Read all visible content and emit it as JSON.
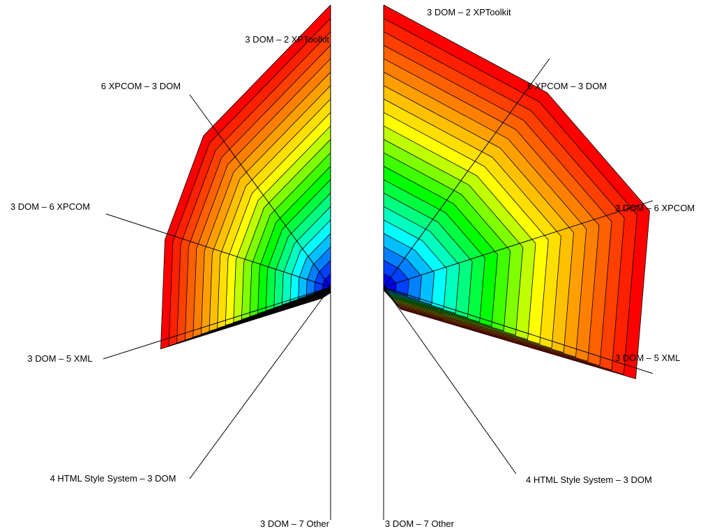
{
  "chart_data": [
    {
      "type": "radar",
      "panel": "left",
      "axes": [
        {
          "label": "3 DOM – 2 XPToolkit",
          "max": 1.0,
          "angle_deg": 90
        },
        {
          "label": "6 XPCOM – 3 DOM",
          "max": 0.7,
          "angle_deg": 130
        },
        {
          "label": "3 DOM – 6 XPCOM",
          "max": 0.61,
          "angle_deg": 164
        },
        {
          "label": "3 DOM – 5 XML",
          "max": 0.64,
          "angle_deg": 200
        },
        {
          "label": "4 HTML Style System – 3 DOM",
          "max": 0.05,
          "angle_deg": 232
        },
        {
          "label": "3 DOM – 7 Other",
          "max": 0.02,
          "angle_deg": 270
        }
      ],
      "bands": 21,
      "color_scale": [
        "#0000ff",
        "#00ffff",
        "#00ff00",
        "#ffff00",
        "#ff8000",
        "#ff0000"
      ]
    },
    {
      "type": "radar",
      "panel": "right",
      "axes": [
        {
          "label": "3 DOM – 2 XPToolkit",
          "max": 1.0,
          "angle_deg": 90
        },
        {
          "label": "6 XPCOM – 3 DOM",
          "max": 0.9,
          "angle_deg": 50
        },
        {
          "label": "3 DOM – 6 XPCOM",
          "max": 0.98,
          "angle_deg": 16
        },
        {
          "label": "3 DOM – 5 XML",
          "max": 0.95,
          "angle_deg": -20
        },
        {
          "label": "4 HTML Style System – 3 DOM",
          "max": 0.1,
          "angle_deg": -52
        },
        {
          "label": "3 DOM – 7 Other",
          "max": 0.01,
          "angle_deg": -90
        }
      ],
      "bands": 21,
      "color_scale": [
        "#0000ff",
        "#00ffff",
        "#00ff00",
        "#ffff00",
        "#ff8000",
        "#ff0000"
      ]
    }
  ]
}
